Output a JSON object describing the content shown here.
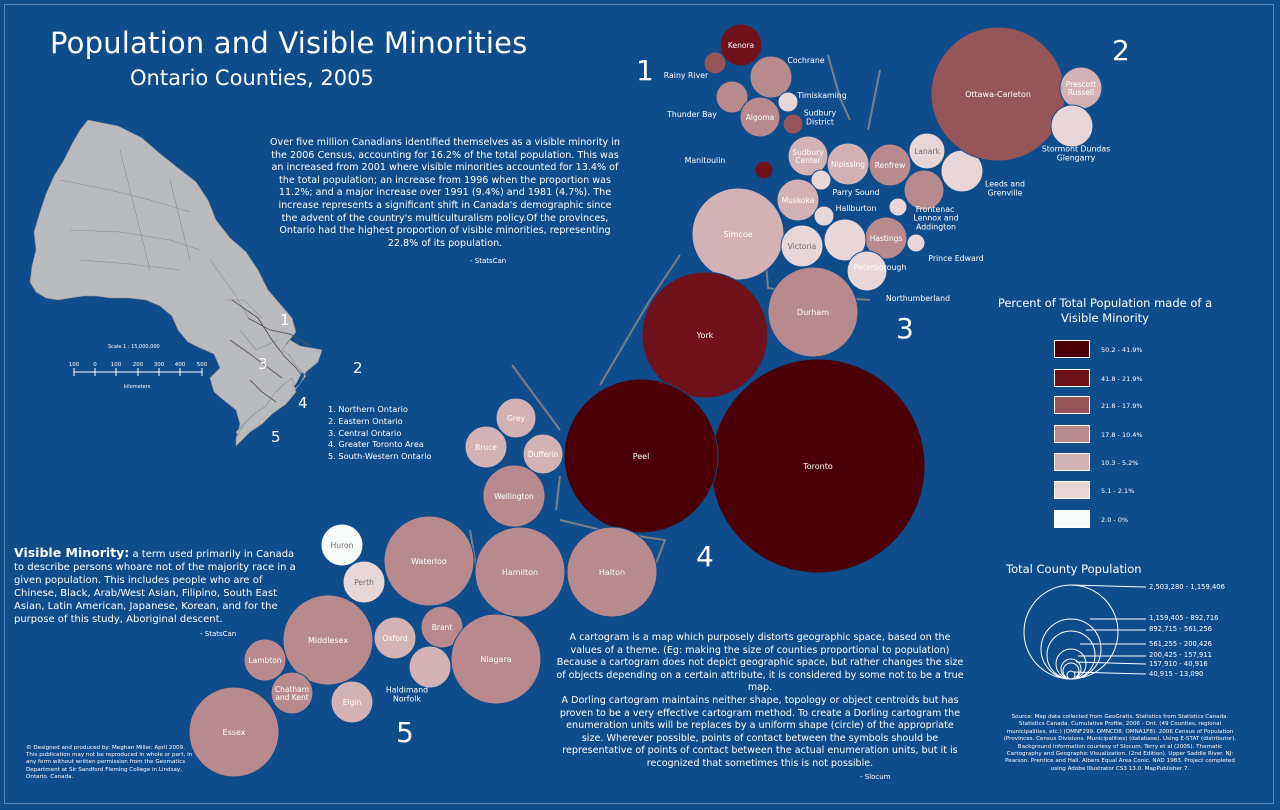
{
  "title": "Population and Visible Minorities",
  "subtitle": "Ontario Counties, 2005",
  "intro": {
    "text": "Over five million Canadians identified themselves as a visible minority in the 2006 Census, accounting for 16.2% of the total population. This was an increased from 2001 where visible minorities accounted for 13.4% of the total population; an increase from 1996 when the proportion was 11.2%; and a major increase over 1991 (9.4%) and 1981 (4.7%). The increase represents a significant shift in Canada's demographic since the advent of the country's multiculturalism policy.Of the provinces, Ontario had the highest proportion of visible minorities, representing 22.8% of its population.",
    "source": "- StatsCan"
  },
  "definition": {
    "term": "Visible Minority:",
    "text": " a term used primarily in Canada to describe persons whoare not of the majority race in a given population. This includes people who are of Chinese, Black, Arab/West Asian, Filipino, South East Asian, Latin American, Japanese, Korean, and for the purpose of this study, Aboriginal descent.",
    "source": "- StatsCan"
  },
  "cartogram_note": {
    "p1": "A cartogram is a map which purposely distorts geographic space, based on the values of a theme. (Eg: making the size of counties proportional to population) Because a cartogram does not depict geographic space, but rather changes the size of objects depending on a certain attribute, it is considered by some not to be a true map.",
    "p2": "A Dorling cartogram maintains neither shape, topology or object centroids but has proven to be a very effective cartogram method. To create a Dorling cartogram the enumeration units will be replaces by a uniform shape (circle) of the appropriate size. Wherever possible, points of contact between the symbols should be representative of points of contact between the actual enumeration units, but it is recognized that sometimes this is not possible.",
    "source": "- Slocum"
  },
  "inset": {
    "scale_label": "Scale 1 : 15,000,000",
    "scale_ticks": [
      "100",
      "0",
      "100",
      "200",
      "300",
      "400",
      "500"
    ],
    "scale_units": "kilometers",
    "region_numbers": [
      "1",
      "2",
      "3",
      "4",
      "5"
    ]
  },
  "regions_list": [
    "1. Northern Ontario",
    "2. Eastern Ontario",
    "3. Central Ontario",
    "4. Greater Toronto Area",
    "5. South-Western Ontario"
  ],
  "region_numbers": [
    "1",
    "2",
    "3",
    "4",
    "5"
  ],
  "legend_color": {
    "title": "Percent of Total Population made of a Visible Minority",
    "classes": [
      {
        "label": "50.2 - 41.9%",
        "color": "#4a0006"
      },
      {
        "label": "41.8 - 21.9%",
        "color": "#6e111b"
      },
      {
        "label": "21.8 - 17.9%",
        "color": "#965558"
      },
      {
        "label": "17.8 - 10.4%",
        "color": "#b98a8d"
      },
      {
        "label": "10.3 - 5.2%",
        "color": "#d2b2b4"
      },
      {
        "label": "5.1 - 2.1%",
        "color": "#e8d6d8"
      },
      {
        "label": "2.0 - 0%",
        "color": "#f7fbfa"
      }
    ]
  },
  "legend_size": {
    "title": "Total County Population",
    "classes": [
      "2,503,280 - 1,159,406",
      "1,159,405 - 892,716",
      "892,715 - 561,256",
      "561,255 - 200,426",
      "200,425 - 157,911",
      "157,910 - 40,916",
      "40,915 - 13,090"
    ]
  },
  "counties": [
    {
      "name": "Kenora",
      "class": 1
    },
    {
      "name": "Rainy River",
      "class": 2
    },
    {
      "name": "Cochrane",
      "class": 3
    },
    {
      "name": "Timiskaming",
      "class": 5
    },
    {
      "name": "Thunder Bay",
      "class": 3
    },
    {
      "name": "Algoma",
      "class": 3
    },
    {
      "name": "Sudbury District",
      "class": 2
    },
    {
      "name": "Manitoulin",
      "class": 1
    },
    {
      "name": "Sudbury Center",
      "class": 4
    },
    {
      "name": "Nipissing",
      "class": 4
    },
    {
      "name": "Renfrew",
      "class": 3
    },
    {
      "name": "Lanark",
      "class": 5
    },
    {
      "name": "Leeds and Grenville",
      "class": 5
    },
    {
      "name": "Frontenac",
      "class": 3
    },
    {
      "name": "Parry Sound",
      "class": 5
    },
    {
      "name": "Muskoka",
      "class": 4
    },
    {
      "name": "Haliburton",
      "class": 5
    },
    {
      "name": "Lennox and Addington",
      "class": 5
    },
    {
      "name": "Hastings",
      "class": 3
    },
    {
      "name": "Prince Edward",
      "class": 5
    },
    {
      "name": "Simcoe",
      "class": 4
    },
    {
      "name": "Victoria",
      "class": 5
    },
    {
      "name": "Peterborough",
      "class": 5
    },
    {
      "name": "Northumberland",
      "class": 5
    },
    {
      "name": "Ottawa-Carleton",
      "class": 2
    },
    {
      "name": "Prescott Russell",
      "class": 4
    },
    {
      "name": "Stormont Dundas Glengarry",
      "class": 5
    },
    {
      "name": "Durham",
      "class": 3
    },
    {
      "name": "York",
      "class": 1
    },
    {
      "name": "Toronto",
      "class": 0
    },
    {
      "name": "Peel",
      "class": 0
    },
    {
      "name": "Grey",
      "class": 4
    },
    {
      "name": "Bruce",
      "class": 4
    },
    {
      "name": "Dufferin",
      "class": 4
    },
    {
      "name": "Wellington",
      "class": 3
    },
    {
      "name": "Waterloo",
      "class": 3
    },
    {
      "name": "Hamilton",
      "class": 3
    },
    {
      "name": "Halton",
      "class": 3
    },
    {
      "name": "Huron",
      "class": 6
    },
    {
      "name": "Perth",
      "class": 5
    },
    {
      "name": "Brant",
      "class": 3
    },
    {
      "name": "Oxford",
      "class": 4
    },
    {
      "name": "Middlesex",
      "class": 3
    },
    {
      "name": "Niagara",
      "class": 3
    },
    {
      "name": "Lambton",
      "class": 3
    },
    {
      "name": "Chatham and Kent",
      "class": 3
    },
    {
      "name": "Elgin",
      "class": 4
    },
    {
      "name": "Haldimand Norfolk",
      "class": 4
    },
    {
      "name": "Essex",
      "class": 3
    }
  ],
  "credits": "© Designed and produced by: Meghan Miller. April 2009. This publication may not be reproduced in whole or part, in any form without written permission from the Geomatics Department at Sir Sandford Fleming College in Lindsay, Ontario. Canada.",
  "source": "Source: Map data collected from GeoGratis. Statistics from Statistics Canada. Statistics Canada. Cumulative Profile, 2006 - Ont. (49 Counties, regional municipalities, etc.) (OMNF299. OMNCD8. OMNA1F8). 2006 Census of Population (Provinces. Census Divisions. Municipalities) (database). Using E-STAT (distributor). Background information courtesy of Slocum. Terry et al (2005). Thematic Cartography and Geographic Visualization. (2nd Edition). Upper Saddle River. NJ: Pearson. Prentice and Hall. Albers Equal Area Conic. NAD 1983. Project completed using Adobe Illustrator CS3 13.0. MapPublisher 7."
}
